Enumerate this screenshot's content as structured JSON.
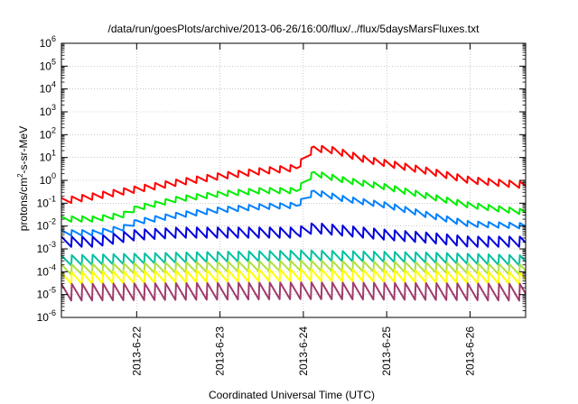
{
  "chart_data": {
    "type": "line",
    "title": "/data/run/goesPlots/archive/2013-06-26/16:00/flux/../flux/5daysMarsFluxes.txt",
    "xlabel": "Coordinated Universal Time (UTC)",
    "ylabel": "protons/cm²-s-sr-MeV",
    "ylabel_base": "protons/cm",
    "ylabel_sup": "2",
    "ylabel_rest": "-s-sr-MeV",
    "y_scale": "log",
    "ylim": [
      1e-06,
      1000000.0
    ],
    "y_ticks": [
      {
        "value": 1e-06,
        "base": "10",
        "exp": "-6"
      },
      {
        "value": 1e-05,
        "base": "10",
        "exp": "-5"
      },
      {
        "value": 0.0001,
        "base": "10",
        "exp": "-4"
      },
      {
        "value": 0.001,
        "base": "10",
        "exp": "-3"
      },
      {
        "value": 0.01,
        "base": "10",
        "exp": "-2"
      },
      {
        "value": 0.1,
        "base": "10",
        "exp": "-1"
      },
      {
        "value": 1,
        "base": "10",
        "exp": "0"
      },
      {
        "value": 10,
        "base": "10",
        "exp": "1"
      },
      {
        "value": 100,
        "base": "10",
        "exp": "2"
      },
      {
        "value": 1000,
        "base": "10",
        "exp": "3"
      },
      {
        "value": 10000,
        "base": "10",
        "exp": "4"
      },
      {
        "value": 100000,
        "base": "10",
        "exp": "5"
      },
      {
        "value": 1000000,
        "base": "10",
        "exp": "6"
      }
    ],
    "xlim": [
      "2013-06-21 02:20",
      "2013-06-26 16:00"
    ],
    "x_ticks": [
      "2013-6-22",
      "2013-6-23",
      "2013-6-24",
      "2013-6-25",
      "2013-6-26"
    ],
    "grid": true,
    "sawtooth_period_hours": 3,
    "series": [
      {
        "color": "#ff0000",
        "amplitude": 2.0,
        "x": [
          "2013-06-21 02:20",
          "2013-06-21 12:00",
          "2013-06-22 00:00",
          "2013-06-22 12:00",
          "2013-06-23 00:00",
          "2013-06-23 12:00",
          "2013-06-23 22:00",
          "2013-06-24 03:00",
          "2013-06-24 09:00",
          "2013-06-24 18:00",
          "2013-06-25 12:00",
          "2013-06-26 00:00",
          "2013-06-26 16:00"
        ],
        "y": [
          0.12,
          0.2,
          0.4,
          0.8,
          1.5,
          2.5,
          3.5,
          25,
          20,
          8,
          2.5,
          1.0,
          0.6
        ]
      },
      {
        "color": "#00ee00",
        "amplitude": 1.8,
        "x": [
          "2013-06-21 02:20",
          "2013-06-21 12:00",
          "2013-06-21 20:00",
          "2013-06-22 00:00",
          "2013-06-22 12:00",
          "2013-06-23 00:00",
          "2013-06-23 12:00",
          "2013-06-23 22:00",
          "2013-06-24 03:00",
          "2013-06-24 12:00",
          "2013-06-25 00:00",
          "2013-06-25 12:00",
          "2013-06-26 00:00",
          "2013-06-26 16:00"
        ],
        "y": [
          0.02,
          0.02,
          0.03,
          0.06,
          0.15,
          0.25,
          0.35,
          0.35,
          2.0,
          1.0,
          0.5,
          0.2,
          0.08,
          0.04
        ]
      },
      {
        "color": "#0080ff",
        "amplitude": 1.8,
        "x": [
          "2013-06-21 02:20",
          "2013-06-21 12:00",
          "2013-06-21 20:00",
          "2013-06-22 00:00",
          "2013-06-22 12:00",
          "2013-06-23 00:00",
          "2013-06-23 12:00",
          "2013-06-23 22:00",
          "2013-06-24 03:00",
          "2013-06-24 12:00",
          "2013-06-25 00:00",
          "2013-06-25 12:00",
          "2013-06-26 00:00",
          "2013-06-26 16:00"
        ],
        "y": [
          0.005,
          0.005,
          0.008,
          0.015,
          0.03,
          0.05,
          0.07,
          0.08,
          0.3,
          0.15,
          0.08,
          0.03,
          0.012,
          0.01
        ]
      },
      {
        "color": "#0000dd",
        "amplitude": 3.0,
        "x": [
          "2013-06-21 02:20",
          "2013-06-21 12:00",
          "2013-06-22 00:00",
          "2013-06-22 12:00",
          "2013-06-23 00:00",
          "2013-06-23 22:00",
          "2013-06-24 03:00",
          "2013-06-24 12:00",
          "2013-06-25 00:00",
          "2013-06-25 12:00",
          "2013-06-26 00:00",
          "2013-06-26 16:00"
        ],
        "y": [
          0.002,
          0.002,
          0.004,
          0.005,
          0.005,
          0.005,
          0.008,
          0.006,
          0.004,
          0.003,
          0.002,
          0.002
        ]
      },
      {
        "color": "#00c0a0",
        "amplitude": 3.0,
        "x": [
          "2013-06-21 02:20",
          "2013-06-22 12:00",
          "2013-06-24 00:00",
          "2013-06-25 12:00",
          "2013-06-26 16:00"
        ],
        "y": [
          0.0003,
          0.0004,
          0.0005,
          0.0004,
          0.0003
        ]
      },
      {
        "color": "#b0e040",
        "amplitude": 3.0,
        "x": [
          "2013-06-21 02:20",
          "2013-06-22 12:00",
          "2013-06-24 00:00",
          "2013-06-25 12:00",
          "2013-06-26 16:00"
        ],
        "y": [
          0.00012,
          0.00015,
          0.00018,
          0.00015,
          0.00012
        ]
      },
      {
        "color": "#ffff00",
        "amplitude": 3.5,
        "x": [
          "2013-06-21 02:20",
          "2013-06-22 12:00",
          "2013-06-24 00:00",
          "2013-06-25 12:00",
          "2013-06-26 16:00"
        ],
        "y": [
          5e-05,
          6e-05,
          7e-05,
          6e-05,
          5e-05
        ]
      },
      {
        "color": "#a03c6e",
        "amplitude": 6.0,
        "x": [
          "2013-06-21 02:20",
          "2013-06-22 12:00",
          "2013-06-24 00:00",
          "2013-06-25 12:00",
          "2013-06-26 16:00"
        ],
        "y": [
          1.2e-05,
          1.3e-05,
          1.4e-05,
          1.3e-05,
          1.2e-05
        ]
      }
    ]
  }
}
